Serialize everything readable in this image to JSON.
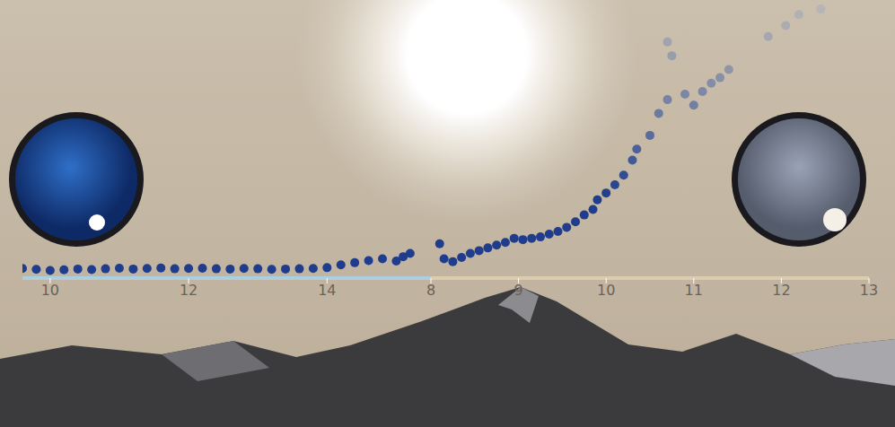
{
  "chart_data": [
    {
      "type": "scatter",
      "x": [
        9.6,
        9.8,
        10.0,
        10.2,
        10.4,
        10.6,
        10.8,
        11.0,
        11.2,
        11.4,
        11.6,
        11.8,
        12.0,
        12.2,
        12.4,
        12.6,
        12.8,
        13.0,
        13.2,
        13.4,
        13.6,
        13.8,
        14.0,
        14.2,
        14.4,
        14.6,
        14.8,
        15.0,
        15.1,
        15.2
      ],
      "values": [
        3.5,
        3.2,
        2.8,
        3.0,
        3.3,
        3.1,
        3.4,
        3.6,
        3.3,
        3.5,
        3.7,
        3.4,
        3.5,
        3.6,
        3.4,
        3.3,
        3.5,
        3.4,
        3.2,
        3.3,
        3.4,
        3.5,
        3.8,
        4.8,
        5.6,
        6.4,
        7.0,
        6.2,
        7.8,
        9.0
      ],
      "color": "#1f3d8c",
      "marker": "circle",
      "xlim": [
        9.6,
        15.5
      ],
      "xticks": [
        10,
        12,
        14
      ],
      "ylim": [
        0,
        100
      ],
      "tick_labels": "x"
    },
    {
      "type": "scatter",
      "x": [
        8.1,
        8.15,
        8.25,
        8.35,
        8.45,
        8.55,
        8.65,
        8.75,
        8.85,
        8.95,
        9.05,
        9.15,
        9.25,
        9.35,
        9.45,
        9.55,
        9.65,
        9.75,
        9.85,
        9.9,
        10.0,
        10.1,
        10.2,
        10.3,
        10.35,
        10.5,
        10.6,
        10.7,
        10.9,
        11.0,
        11.1,
        11.2,
        11.3,
        11.4,
        10.75,
        10.7,
        11.85,
        12.05,
        12.2,
        12.45
      ],
      "values": [
        12.5,
        7.0,
        6.0,
        7.5,
        9.0,
        10.0,
        11.0,
        12.0,
        13.0,
        14.5,
        14.0,
        14.5,
        15.0,
        16.0,
        17.0,
        18.5,
        20.5,
        23.0,
        25.0,
        28.5,
        31.0,
        34.0,
        37.5,
        43.0,
        47.0,
        52.0,
        60.0,
        65.0,
        67.0,
        63.0,
        68.0,
        71.0,
        73.0,
        76.0,
        81.0,
        86.0,
        88.0,
        92.0,
        96.0,
        98.0
      ],
      "color": "#1f3d8c",
      "marker": "circle",
      "xlim": [
        8,
        13
      ],
      "xticks": [
        8,
        9,
        10,
        11,
        12,
        13
      ],
      "ylim": [
        0,
        100
      ],
      "tick_labels": "x"
    }
  ]
}
